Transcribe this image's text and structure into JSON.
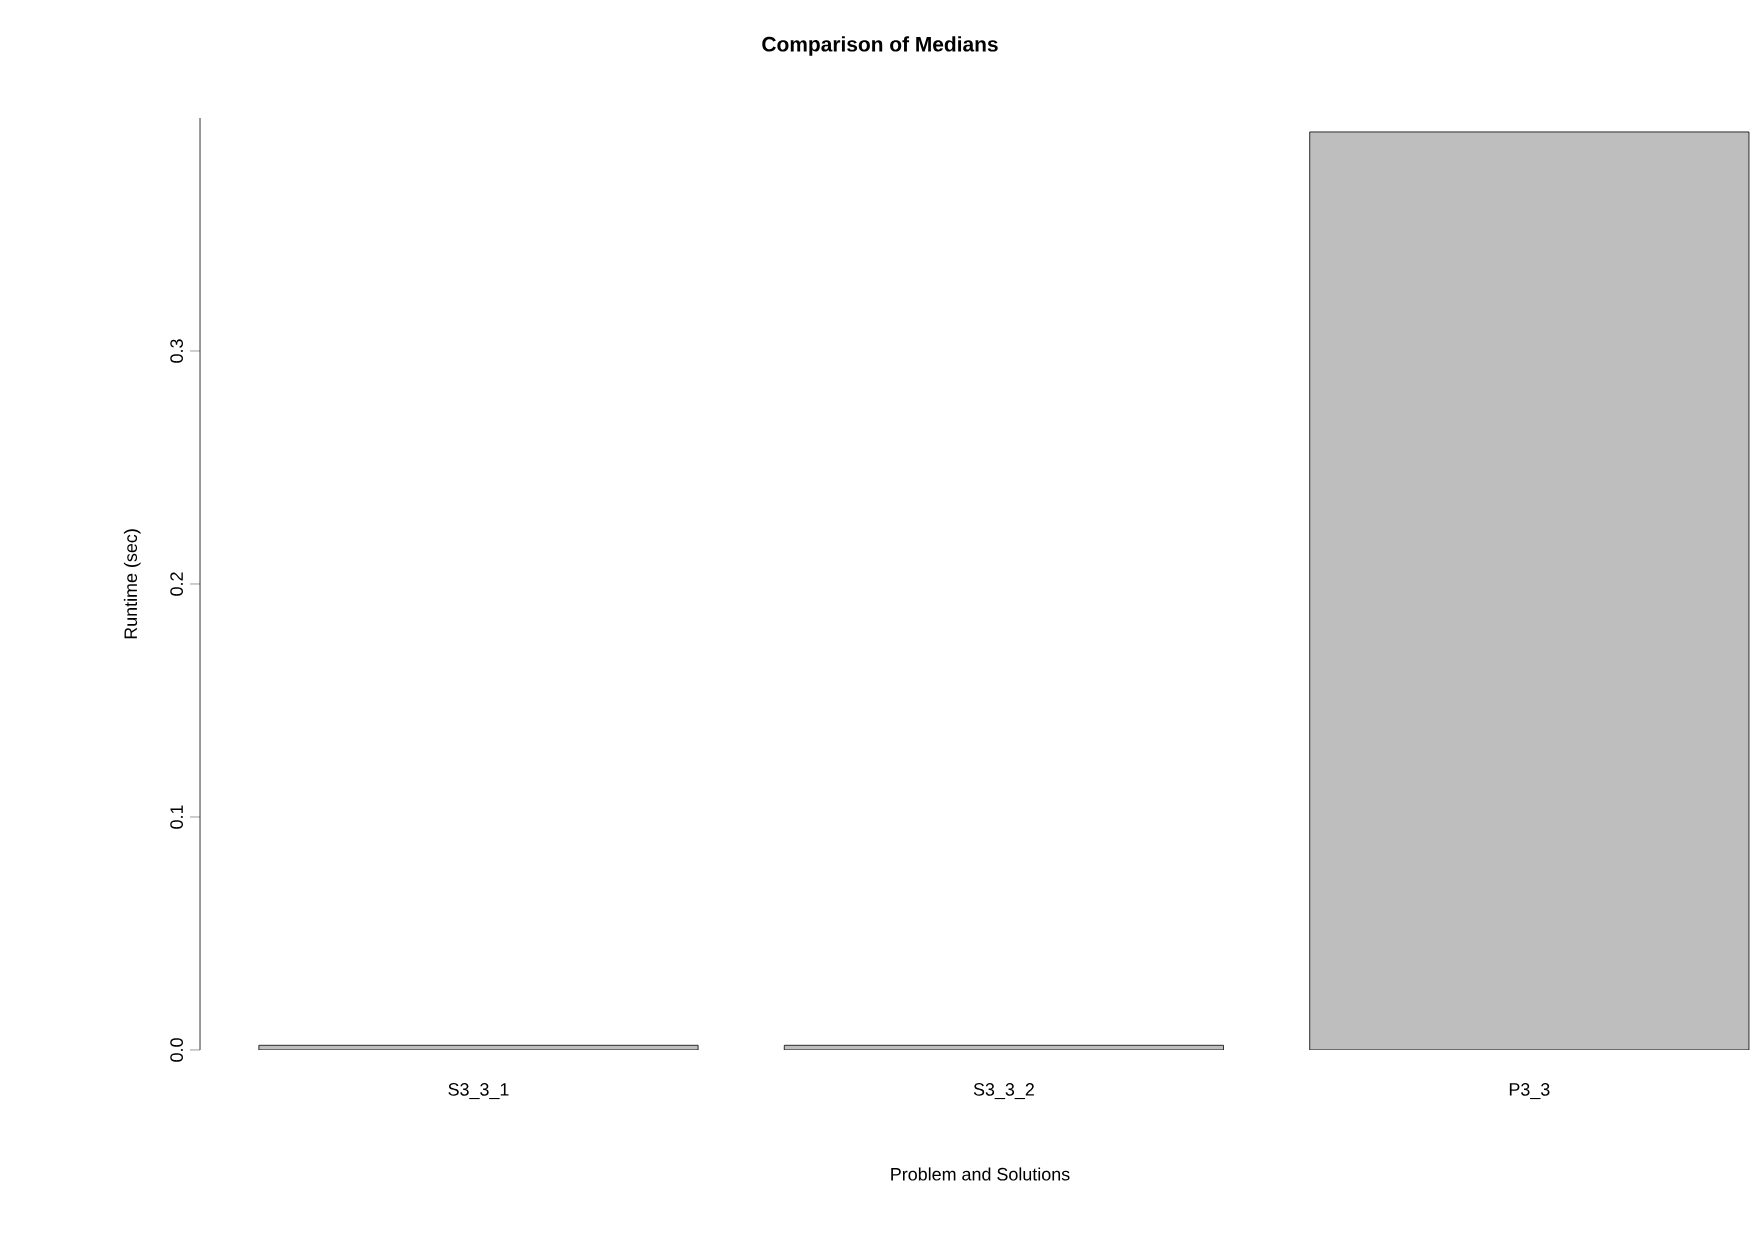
{
  "chart_data": {
    "type": "bar",
    "title": "Comparison of Medians",
    "xlabel": "Problem and Solutions",
    "ylabel": "Runtime (sec)",
    "categories": [
      "S3_3_1",
      "S3_3_2",
      "P3_3"
    ],
    "values": [
      0.002,
      0.002,
      0.394
    ],
    "colors": [
      "#bebebe",
      "#bebebe",
      "#bebebe"
    ],
    "ylim": [
      0,
      0.4
    ],
    "yticks": [
      {
        "value": 0,
        "label": "0.0"
      },
      {
        "value": 0.1,
        "label": "0.1"
      },
      {
        "value": 0.2,
        "label": "0.2"
      },
      {
        "value": 0.3,
        "label": "0.3"
      }
    ],
    "grid": false
  }
}
